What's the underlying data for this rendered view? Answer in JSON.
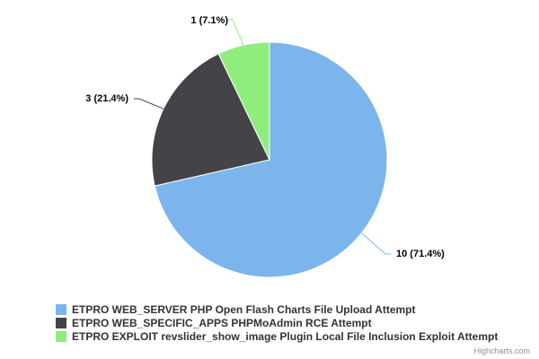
{
  "chart_data": {
    "type": "pie",
    "title": "",
    "slices": [
      {
        "name": "ETPRO WEB_SERVER PHP Open Flash Charts File Upload Attempt",
        "value": 10,
        "percent": 71.4,
        "label": "10 (71.4%)",
        "color": "#7cb5ec"
      },
      {
        "name": "ETPRO WEB_SPECIFIC_APPS PHPMoAdmin RCE Attempt",
        "value": 3,
        "percent": 21.4,
        "label": "3 (21.4%)",
        "color": "#434348"
      },
      {
        "name": "ETPRO EXPLOIT revslider_show_image Plugin Local File Inclusion Exploit Attempt",
        "value": 1,
        "percent": 7.1,
        "label": "1 (7.1%)",
        "color": "#90ed7d"
      }
    ],
    "legend_position": "bottom-left",
    "start_angle": "top, clockwise"
  },
  "credits": {
    "text": "Highcharts.com"
  }
}
